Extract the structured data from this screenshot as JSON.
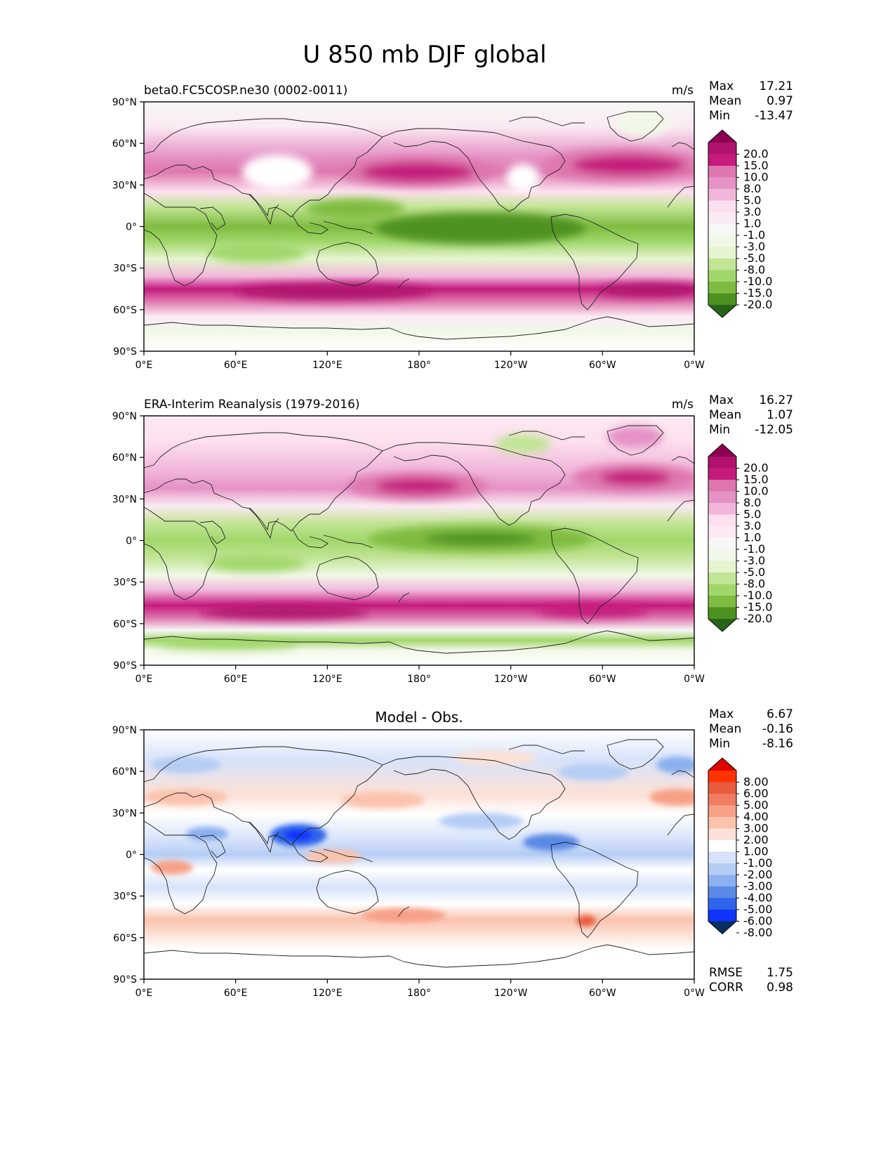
{
  "figure": {
    "title": "U 850 mb DJF global"
  },
  "axes": {
    "lat_ticks": [
      "90°N",
      "60°N",
      "30°N",
      "0°",
      "30°S",
      "60°S",
      "90°S"
    ],
    "lon_ticks": [
      "0°E",
      "60°E",
      "120°E",
      "180°",
      "120°W",
      "60°W",
      "0°W"
    ]
  },
  "colors": {
    "uwind_levels": [
      "#276419",
      "#4d9221",
      "#7fbc41",
      "#a1d76a",
      "#c2e596",
      "#e6f5d0",
      "#f2f8e8",
      "#f7f7f7",
      "#fbeaf3",
      "#fde0ef",
      "#f1b6da",
      "#e592c6",
      "#de77ae",
      "#c51b7d",
      "#b0126e",
      "#8e0152"
    ],
    "diff_levels": [
      "#053061",
      "#1033ff",
      "#2f63ea",
      "#5a89e6",
      "#8bb0ef",
      "#b5cdf5",
      "#d7e3fa",
      "#ffffff",
      "#fde1d6",
      "#fbc3ad",
      "#f7a086",
      "#f07c61",
      "#e85b3e",
      "#ff3300",
      "#e00000"
    ]
  },
  "panels": [
    {
      "id": "test",
      "left_title": "beta0.FC5COSP.ne30 (0002-0011)",
      "center_title": "",
      "units": "m/s",
      "stats": [
        {
          "label": "Max",
          "value": "17.21"
        },
        {
          "label": "Mean",
          "value": "0.97"
        },
        {
          "label": "Min",
          "value": "-13.47"
        }
      ],
      "colorbar_labels": [
        "20.0",
        "15.0",
        "10.0",
        "8.0",
        "5.0",
        "3.0",
        "1.0",
        "-1.0",
        "-3.0",
        "-5.0",
        "-8.0",
        "-10.0",
        "-15.0",
        "-20.0"
      ],
      "extra_stats": []
    },
    {
      "id": "reference",
      "left_title": "ERA-Interim Reanalysis (1979-2016)",
      "center_title": "",
      "units": "m/s",
      "stats": [
        {
          "label": "Max",
          "value": "16.27"
        },
        {
          "label": "Mean",
          "value": "1.07"
        },
        {
          "label": "Min",
          "value": "-12.05"
        }
      ],
      "colorbar_labels": [
        "20.0",
        "15.0",
        "10.0",
        "8.0",
        "5.0",
        "3.0",
        "1.0",
        "-1.0",
        "-3.0",
        "-5.0",
        "-8.0",
        "-10.0",
        "-15.0",
        "-20.0"
      ],
      "extra_stats": []
    },
    {
      "id": "difference",
      "left_title": "",
      "center_title": "Model - Obs.",
      "units": "",
      "stats": [
        {
          "label": "Max",
          "value": "6.67"
        },
        {
          "label": "Mean",
          "value": "-0.16"
        },
        {
          "label": "Min",
          "value": "-8.16"
        }
      ],
      "colorbar_labels": [
        "8.00",
        "6.00",
        "5.00",
        "4.00",
        "3.00",
        "2.00",
        "1.00",
        "-1.00",
        "-2.00",
        "-3.00",
        "-4.00",
        "-5.00",
        "-6.00",
        "-8.00"
      ],
      "extra_stats": [
        {
          "label": "RMSE",
          "value": "1.75"
        },
        {
          "label": "CORR",
          "value": "0.98"
        }
      ]
    }
  ]
}
